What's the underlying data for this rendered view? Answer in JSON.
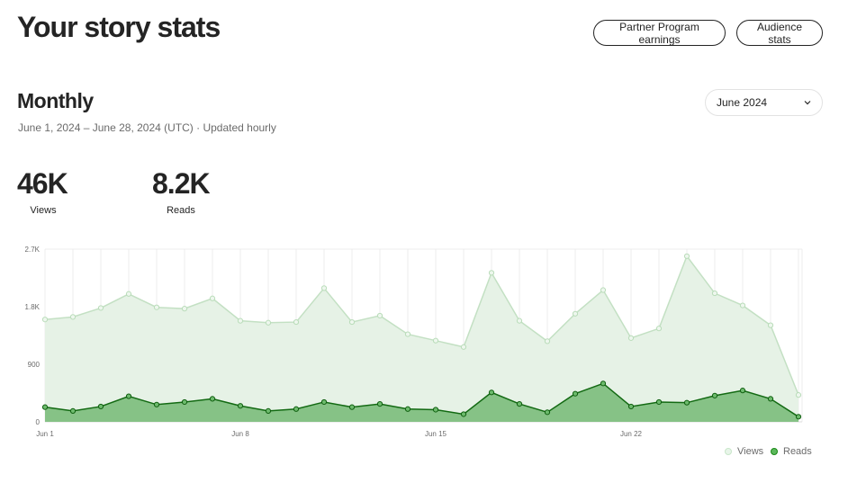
{
  "header": {
    "title": "Your story stats",
    "partner_button": "Partner Program earnings",
    "audience_button": "Audience stats"
  },
  "section": {
    "title": "Monthly",
    "date_range": "June 1, 2024 – June 28, 2024 (UTC) · Updated hourly",
    "month_select": "June 2024"
  },
  "stats": {
    "views_value": "46K",
    "views_label": "Views",
    "reads_value": "8.2K",
    "reads_label": "Reads"
  },
  "chart_data": {
    "type": "area",
    "x_tick_labels": [
      "Jun 1",
      "Jun 8",
      "Jun 15",
      "Jun 22"
    ],
    "y_tick_labels": [
      "0",
      "900",
      "1.8K",
      "2.7K"
    ],
    "ylim": [
      0,
      2700
    ],
    "grid": "vertical lines per day",
    "legend": "bottom-right",
    "series": [
      {
        "name": "Views",
        "color": "#c8e6c9",
        "values": [
          1600,
          1640,
          1780,
          2000,
          1790,
          1770,
          1930,
          1580,
          1550,
          1560,
          2090,
          1560,
          1660,
          1370,
          1270,
          1170,
          2330,
          1580,
          1260,
          1690,
          2060,
          1310,
          1460,
          2590,
          2010,
          1820,
          1510,
          420
        ]
      },
      {
        "name": "Reads",
        "color": "#1a8917",
        "values": [
          230,
          170,
          240,
          400,
          270,
          310,
          360,
          250,
          170,
          200,
          310,
          230,
          280,
          200,
          190,
          120,
          460,
          280,
          150,
          440,
          600,
          240,
          310,
          300,
          410,
          490,
          360,
          80
        ]
      }
    ]
  }
}
